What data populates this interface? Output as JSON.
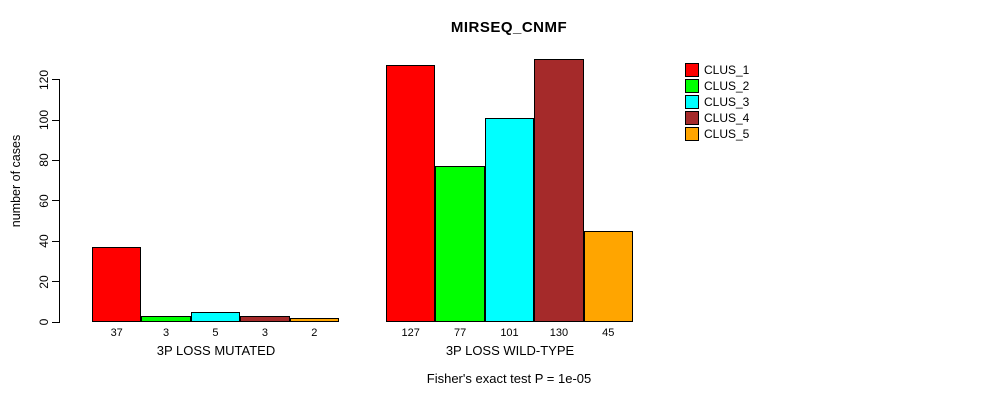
{
  "chart_data": {
    "type": "bar",
    "title": "MIRSEQ_CNMF",
    "ylabel": "number of cases",
    "xlabel": "",
    "yticks": [
      0,
      20,
      40,
      60,
      80,
      100,
      120
    ],
    "ylim": [
      0,
      130
    ],
    "grid": false,
    "legend_position": "right",
    "categories": [
      "3P LOSS MUTATED",
      "3P LOSS WILD-TYPE"
    ],
    "series": [
      {
        "name": "CLUS_1",
        "values": [
          37,
          127
        ]
      },
      {
        "name": "CLUS_2",
        "values": [
          3,
          77
        ]
      },
      {
        "name": "CLUS_3",
        "values": [
          5,
          101
        ]
      },
      {
        "name": "CLUS_4",
        "values": [
          3,
          130
        ]
      },
      {
        "name": "CLUS_5",
        "values": [
          2,
          45
        ]
      }
    ],
    "groups": [
      {
        "label": "3P LOSS MUTATED",
        "values": [
          37,
          3,
          5,
          3,
          2
        ]
      },
      {
        "label": "3P LOSS WILD-TYPE",
        "values": [
          127,
          77,
          101,
          130,
          45
        ]
      }
    ],
    "bar_value_labels": [
      "37",
      "3",
      "5",
      "3",
      "2",
      "127",
      "77",
      "101",
      "130",
      "45"
    ],
    "series_colors": [
      "#FF0000",
      "#00FF00",
      "#00FFFF",
      "#A52A2A",
      "#FFA500"
    ],
    "legend": [
      {
        "label": "CLUS_1",
        "color": "#FF0000"
      },
      {
        "label": "CLUS_2",
        "color": "#00FF00"
      },
      {
        "label": "CLUS_3",
        "color": "#00FFFF"
      },
      {
        "label": "CLUS_4",
        "color": "#A52A2A"
      },
      {
        "label": "CLUS_5",
        "color": "#FFA500"
      }
    ],
    "footnote": "Fisher's exact test P = 1e-05"
  }
}
